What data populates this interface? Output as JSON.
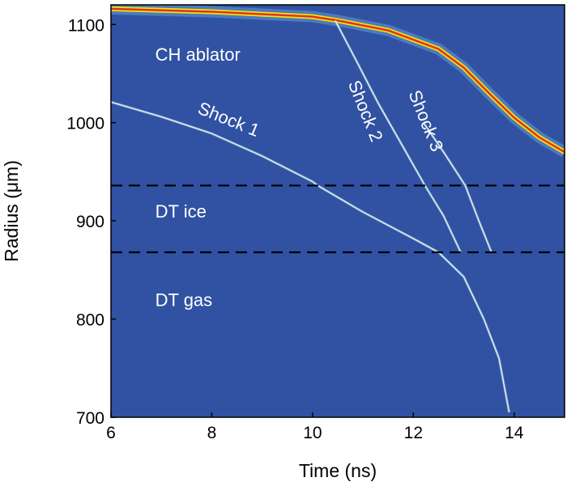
{
  "chart_data": {
    "type": "heatmap",
    "xlabel": "Time (ns)",
    "ylabel": "Radius (μm)",
    "xlim": [
      6,
      15
    ],
    "ylim": [
      700,
      1120
    ],
    "xticks": [
      6,
      8,
      10,
      12,
      14
    ],
    "yticks": [
      700,
      800,
      900,
      1000,
      1100
    ],
    "colors": {
      "background": "#3152a3",
      "front": "#e0302a",
      "shock": "#e8efe0",
      "dashed": "#000000"
    },
    "interfaces": [
      {
        "name": "ablator-ice interface",
        "radius": 936
      },
      {
        "name": "ice-gas interface",
        "radius": 868
      }
    ],
    "regions": [
      {
        "label": "CH ablator",
        "t": 6.3,
        "r": 1060
      },
      {
        "label": "DT ice",
        "t": 6.3,
        "r": 900
      },
      {
        "label": "DT gas",
        "t": 6.3,
        "r": 810
      }
    ],
    "trajectories": [
      {
        "name": "ablation front",
        "points": [
          [
            6,
            1116
          ],
          [
            8,
            1113
          ],
          [
            10,
            1108
          ],
          [
            10.5,
            1104
          ],
          [
            11.5,
            1094
          ],
          [
            12.5,
            1075
          ],
          [
            13,
            1056
          ],
          [
            13.5,
            1030
          ],
          [
            14,
            1005
          ],
          [
            14.5,
            985
          ],
          [
            15,
            970
          ]
        ]
      },
      {
        "name": "Shock 1",
        "label": "Shock 1",
        "label_t": 7.7,
        "label_r": 1010,
        "label_angle": 22,
        "points": [
          [
            6,
            1021
          ],
          [
            7,
            1006
          ],
          [
            8,
            989
          ],
          [
            9,
            966
          ],
          [
            10,
            940
          ],
          [
            10.1,
            936
          ],
          [
            11,
            909
          ],
          [
            12,
            882
          ],
          [
            12.5,
            868
          ],
          [
            13,
            843
          ],
          [
            13.4,
            800
          ],
          [
            13.7,
            760
          ],
          [
            13.9,
            705
          ]
        ]
      },
      {
        "name": "Shock 2",
        "label": "Shock 2",
        "label_t": 10.7,
        "label_r": 1040,
        "label_angle": 68,
        "points": [
          [
            10.45,
            1104
          ],
          [
            10.9,
            1060
          ],
          [
            11.3,
            1020
          ],
          [
            11.8,
            975
          ],
          [
            12.23,
            936
          ],
          [
            12.6,
            905
          ],
          [
            12.94,
            868
          ]
        ]
      },
      {
        "name": "Shock 3",
        "label": "Shock 3",
        "label_t": 11.9,
        "label_r": 1030,
        "label_angle": 68,
        "points": [
          [
            12.2,
            1000
          ],
          [
            12.6,
            970
          ],
          [
            13.03,
            936
          ],
          [
            13.3,
            900
          ],
          [
            13.55,
            868
          ]
        ]
      }
    ]
  }
}
